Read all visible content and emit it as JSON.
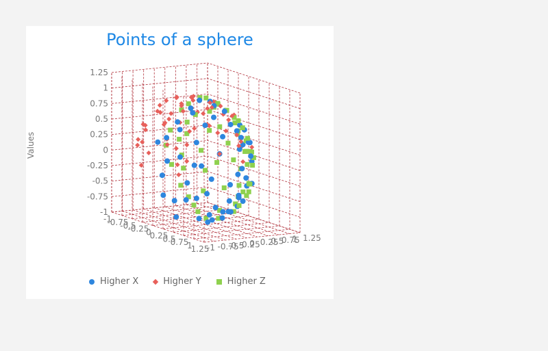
{
  "chart_data": {
    "type": "scatter",
    "title": "Points of a sphere",
    "ylabel": "Values",
    "xlabel": "",
    "zlabel": "",
    "xlim": [
      -1,
      1.25
    ],
    "ylim": [
      -1,
      1.25
    ],
    "zlim": [
      -1,
      1.25
    ],
    "y_ticks": [
      "1.25",
      "1",
      "0.75",
      "0.5",
      "0.25",
      "0",
      "-0.25",
      "-0.5",
      "-0.75",
      "-1"
    ],
    "x_ticks": [
      "-1",
      "-0.75",
      "-0.5",
      "-0.25",
      "0",
      "0.25",
      "0.5",
      "0.75",
      "1",
      "1.25"
    ],
    "z_ticks": [
      "-1",
      "-0.75",
      "-0.5",
      "-0.25",
      "0",
      "0.25",
      "0.5",
      "0.75",
      "1",
      "1.25"
    ],
    "grid": true,
    "legend_position": "bottom",
    "series": [
      {
        "name": "Higher X",
        "marker": "circle",
        "color": "#2e86de",
        "points": [
          [
            0.95,
            -0.2,
            -0.1
          ],
          [
            0.98,
            0.05,
            0.15
          ],
          [
            0.9,
            0.3,
            -0.3
          ],
          [
            0.85,
            -0.45,
            0.2
          ],
          [
            0.8,
            0.5,
            0.3
          ],
          [
            0.75,
            -0.6,
            -0.25
          ],
          [
            0.7,
            0.1,
            -0.7
          ],
          [
            0.65,
            -0.3,
            0.7
          ],
          [
            0.6,
            0.7,
            -0.35
          ],
          [
            0.55,
            -0.75,
            0.3
          ],
          [
            0.6,
            0.35,
            0.7
          ],
          [
            0.5,
            -0.5,
            -0.7
          ],
          [
            0.45,
            0.85,
            0.25
          ],
          [
            0.4,
            -0.85,
            -0.3
          ],
          [
            0.35,
            0.6,
            -0.7
          ],
          [
            0.3,
            -0.3,
            0.9
          ],
          [
            0.25,
            0.9,
            -0.35
          ],
          [
            0.2,
            -0.95,
            0.2
          ],
          [
            0.15,
            0.2,
            0.97
          ],
          [
            0.1,
            -0.5,
            -0.85
          ],
          [
            0.05,
            0.75,
            0.65
          ],
          [
            0.0,
            -0.9,
            -0.45
          ],
          [
            0.05,
            0.35,
            -0.93
          ],
          [
            0.1,
            -0.7,
            0.7
          ],
          [
            0.15,
            0.95,
            0.2
          ],
          [
            0.2,
            -0.15,
            -0.97
          ],
          [
            0.25,
            0.55,
            0.8
          ],
          [
            0.3,
            -0.95,
            0.0
          ],
          [
            0.35,
            0.85,
            -0.4
          ],
          [
            0.4,
            -0.4,
            0.82
          ],
          [
            0.45,
            0.0,
            0.89
          ],
          [
            0.5,
            -0.85,
            0.15
          ],
          [
            0.55,
            0.8,
            -0.1
          ],
          [
            0.6,
            -0.2,
            -0.77
          ],
          [
            0.65,
            0.45,
            -0.6
          ],
          [
            0.7,
            -0.7,
            0.1
          ],
          [
            0.75,
            0.6,
            0.25
          ],
          [
            0.8,
            -0.35,
            -0.5
          ],
          [
            0.85,
            0.2,
            0.48
          ],
          [
            0.9,
            -0.4,
            0.15
          ],
          [
            0.92,
            0.35,
            0.15
          ],
          [
            0.88,
            -0.1,
            -0.47
          ],
          [
            0.7,
            0.7,
            0.15
          ],
          [
            0.5,
            0.2,
            -0.84
          ],
          [
            0.3,
            -0.55,
            -0.78
          ],
          [
            0.2,
            0.45,
            -0.87
          ],
          [
            0.35,
            0.93,
            0.1
          ],
          [
            0.15,
            -0.85,
            0.5
          ],
          [
            0.4,
            0.3,
            0.86
          ],
          [
            0.6,
            -0.75,
            -0.25
          ],
          [
            0.72,
            -0.55,
            0.42
          ],
          [
            0.82,
            0.55,
            -0.15
          ],
          [
            0.45,
            -0.7,
            0.55
          ],
          [
            0.25,
            0.7,
            -0.66
          ],
          [
            0.1,
            0.97,
            0.0
          ],
          [
            0.05,
            -0.3,
            0.95
          ],
          [
            0.3,
            0.1,
            -0.95
          ],
          [
            0.55,
            0.55,
            0.62
          ],
          [
            0.65,
            -0.45,
            -0.6
          ],
          [
            0.78,
            0.1,
            -0.61
          ]
        ]
      },
      {
        "name": "Higher Y",
        "marker": "diamond",
        "color": "#e8605b",
        "points": [
          [
            -0.2,
            0.95,
            0.1
          ],
          [
            0.1,
            0.98,
            -0.15
          ],
          [
            -0.35,
            0.9,
            0.25
          ],
          [
            0.3,
            0.9,
            0.3
          ],
          [
            -0.5,
            0.85,
            -0.2
          ],
          [
            0.45,
            0.85,
            -0.25
          ],
          [
            -0.15,
            0.85,
            0.5
          ],
          [
            0.2,
            0.85,
            -0.48
          ],
          [
            -0.6,
            0.75,
            0.25
          ],
          [
            0.6,
            0.75,
            0.2
          ],
          [
            -0.3,
            0.75,
            -0.6
          ],
          [
            0.35,
            0.75,
            0.57
          ],
          [
            -0.75,
            0.6,
            -0.1
          ],
          [
            0.75,
            0.6,
            -0.2
          ],
          [
            -0.1,
            0.65,
            0.75
          ],
          [
            0.05,
            0.65,
            -0.76
          ],
          [
            -0.55,
            0.6,
            0.58
          ],
          [
            0.5,
            0.6,
            -0.62
          ],
          [
            -0.85,
            0.45,
            0.2
          ],
          [
            0.85,
            0.45,
            0.25
          ],
          [
            -0.45,
            0.5,
            -0.74
          ],
          [
            0.4,
            0.5,
            0.77
          ],
          [
            -0.9,
            0.3,
            -0.3
          ],
          [
            0.9,
            0.3,
            -0.3
          ],
          [
            -0.2,
            0.35,
            0.91
          ],
          [
            0.25,
            0.35,
            -0.9
          ],
          [
            -0.7,
            0.3,
            0.65
          ],
          [
            0.7,
            0.3,
            0.65
          ],
          [
            -0.95,
            0.1,
            0.25
          ],
          [
            0.95,
            0.15,
            0.2
          ],
          [
            -0.6,
            0.15,
            -0.78
          ],
          [
            0.6,
            0.15,
            -0.78
          ],
          [
            -0.98,
            -0.1,
            -0.15
          ],
          [
            0.1,
            0.15,
            0.98
          ],
          [
            -0.85,
            -0.3,
            0.4
          ],
          [
            0.0,
            0.9,
            0.43
          ],
          [
            -0.4,
            0.92,
            -0.05
          ],
          [
            0.4,
            0.92,
            0.0
          ],
          [
            -0.25,
            0.95,
            -0.2
          ],
          [
            0.15,
            0.93,
            0.33
          ],
          [
            -0.65,
            0.7,
            0.3
          ],
          [
            0.65,
            0.7,
            -0.3
          ],
          [
            -0.35,
            0.7,
            0.62
          ],
          [
            0.3,
            0.7,
            -0.65
          ],
          [
            -0.8,
            0.55,
            0.2
          ],
          [
            0.8,
            0.55,
            0.2
          ],
          [
            -0.5,
            0.4,
            0.76
          ],
          [
            0.55,
            0.4,
            -0.73
          ],
          [
            -0.92,
            0.35,
            0.15
          ],
          [
            0.9,
            0.4,
            0.15
          ],
          [
            -0.75,
            0.2,
            -0.62
          ],
          [
            -0.9,
            -0.05,
            0.42
          ],
          [
            -0.93,
            0.1,
            -0.35
          ],
          [
            -0.85,
            -0.25,
            -0.45
          ],
          [
            -0.8,
            -0.45,
            0.38
          ],
          [
            -0.1,
            0.99,
            0.05
          ],
          [
            0.25,
            0.96,
            0.1
          ],
          [
            -0.45,
            0.8,
            -0.4
          ],
          [
            0.5,
            0.78,
            0.38
          ],
          [
            -0.7,
            0.45,
            -0.55
          ]
        ]
      },
      {
        "name": "Higher Z",
        "marker": "square",
        "color": "#8fd14f",
        "points": [
          [
            0.1,
            -0.2,
            0.97
          ],
          [
            -0.2,
            0.15,
            0.96
          ],
          [
            0.3,
            0.3,
            0.9
          ],
          [
            -0.4,
            -0.2,
            0.89
          ],
          [
            0.45,
            -0.35,
            0.82
          ],
          [
            -0.5,
            0.3,
            0.81
          ],
          [
            0.1,
            0.55,
            0.83
          ],
          [
            -0.15,
            -0.55,
            0.82
          ],
          [
            0.6,
            0.1,
            0.79
          ],
          [
            -0.65,
            -0.05,
            0.76
          ],
          [
            0.35,
            0.65,
            0.67
          ],
          [
            -0.35,
            0.65,
            0.67
          ],
          [
            0.3,
            -0.7,
            0.65
          ],
          [
            -0.45,
            -0.65,
            0.62
          ],
          [
            0.7,
            0.45,
            0.55
          ],
          [
            -0.75,
            0.4,
            0.53
          ],
          [
            0.75,
            -0.4,
            0.53
          ],
          [
            -0.8,
            -0.35,
            0.49
          ],
          [
            0.0,
            0.85,
            0.53
          ],
          [
            0.05,
            -0.85,
            0.52
          ],
          [
            0.85,
            0.05,
            0.52
          ],
          [
            -0.88,
            0.1,
            0.47
          ],
          [
            0.5,
            0.75,
            0.43
          ],
          [
            -0.55,
            0.75,
            0.37
          ],
          [
            0.55,
            -0.75,
            0.37
          ],
          [
            -0.55,
            -0.75,
            0.37
          ],
          [
            0.9,
            0.3,
            0.32
          ],
          [
            -0.92,
            0.25,
            0.3
          ],
          [
            0.9,
            -0.35,
            0.25
          ],
          [
            -0.9,
            -0.3,
            0.31
          ],
          [
            0.2,
            0.92,
            0.33
          ],
          [
            -0.2,
            0.93,
            0.3
          ],
          [
            0.25,
            -0.92,
            0.3
          ],
          [
            -0.25,
            -0.92,
            0.3
          ],
          [
            0.75,
            0.6,
            0.28
          ],
          [
            -0.7,
            0.62,
            0.35
          ],
          [
            0.7,
            -0.62,
            0.35
          ],
          [
            -0.72,
            -0.6,
            0.35
          ],
          [
            0.95,
            0.1,
            0.3
          ],
          [
            -0.97,
            0.0,
            0.25
          ],
          [
            0.0,
            0.97,
            0.25
          ],
          [
            0.0,
            -0.97,
            0.25
          ],
          [
            0.2,
            0.1,
            0.97
          ],
          [
            -0.1,
            -0.1,
            0.99
          ],
          [
            0.4,
            0.15,
            0.9
          ],
          [
            -0.3,
            0.4,
            0.86
          ],
          [
            0.15,
            -0.45,
            0.88
          ],
          [
            -0.55,
            -0.35,
            0.76
          ],
          [
            0.6,
            -0.5,
            0.62
          ],
          [
            -0.6,
            0.55,
            0.58
          ],
          [
            0.6,
            0.6,
            0.53
          ],
          [
            -0.2,
            0.75,
            0.63
          ],
          [
            0.25,
            -0.6,
            0.76
          ],
          [
            0.8,
            0.25,
            0.55
          ],
          [
            -0.8,
            0.2,
            0.57
          ],
          [
            0.4,
            0.85,
            0.35
          ],
          [
            -0.4,
            -0.85,
            0.35
          ],
          [
            0.85,
            -0.25,
            0.46
          ],
          [
            -0.85,
            -0.15,
            0.5
          ],
          [
            0.05,
            0.35,
            0.94
          ]
        ]
      }
    ]
  }
}
